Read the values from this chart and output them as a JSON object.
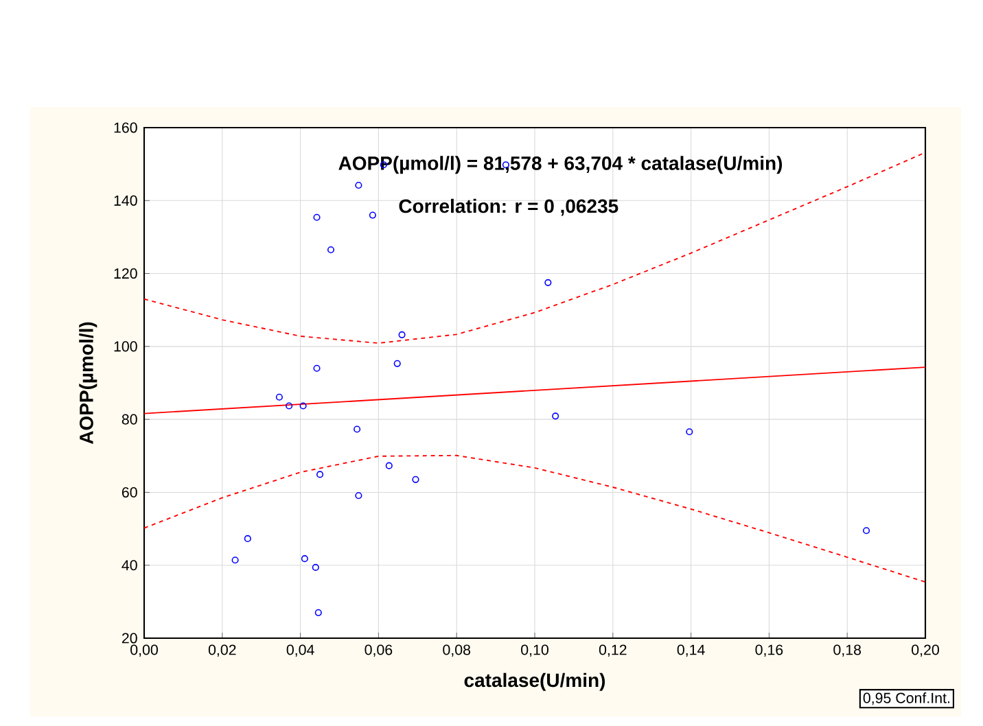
{
  "chart_data": {
    "type": "scatter",
    "xlabel": "catalase(U/min)",
    "ylabel": "AOPP(µmol/l)",
    "annotations": [
      "AOPP(µmol/l) = 81,578 + 63,704 * catalase(U/min)",
      "Correlation: r =  0 ,06235",
      "0,95 Conf.Int."
    ],
    "xlim": [
      0,
      0.2
    ],
    "xticks": [
      {
        "value": 0,
        "label": "0,00"
      },
      {
        "value": 0.02,
        "label": "0,02"
      },
      {
        "value": 0.04,
        "label": "0,04"
      },
      {
        "value": 0.06,
        "label": "0,06"
      },
      {
        "value": 0.08,
        "label": "0,08"
      },
      {
        "value": 0.1,
        "label": "0,10"
      },
      {
        "value": 0.12,
        "label": "0,12"
      },
      {
        "value": 0.14,
        "label": "0,14"
      },
      {
        "value": 0.16,
        "label": "0,16"
      },
      {
        "value": 0.18,
        "label": "0,18"
      },
      {
        "value": 0.2,
        "label": "0,20"
      }
    ],
    "ylim": [
      20,
      160
    ],
    "yticks": [
      20,
      40,
      60,
      80,
      100,
      120,
      140,
      160
    ],
    "grid": true,
    "series": [
      {
        "color": "#0000ff",
        "marker": "circle",
        "x": [
          0.0613,
          0.0549,
          0.0442,
          0.0585,
          0.0478,
          0.066,
          0.0648,
          0.0442,
          0.0346,
          0.0371,
          0.0407,
          0.0545,
          0.0627,
          0.0695,
          0.045,
          0.0549,
          0.0265,
          0.0233,
          0.0411,
          0.0439,
          0.0446,
          0.0926,
          0.1034,
          0.1053,
          0.1396,
          0.1849
        ],
        "values": [
          149.8,
          144.2,
          135.4,
          136.0,
          126.5,
          103.2,
          95.3,
          94.0,
          86.1,
          83.7,
          83.7,
          77.3,
          67.3,
          63.5,
          64.9,
          59.1,
          47.3,
          41.4,
          41.8,
          39.4,
          27.0,
          149.8,
          117.5,
          80.9,
          76.6,
          49.5
        ]
      },
      {
        "type": "line",
        "color": "#ff0000",
        "line_style": "solid",
        "x": [
          0,
          0.2
        ],
        "values": [
          81.6,
          94.3
        ]
      },
      {
        "type": "line",
        "color": "#ff0000",
        "line_style": "dashed",
        "x": [
          0,
          0.02,
          0.04,
          0.06,
          0.08,
          0.1,
          0.12,
          0.14,
          0.16,
          0.18,
          0.2
        ],
        "values": [
          113.0,
          107.3,
          102.8,
          100.9,
          103.3,
          109.3,
          117.0,
          125.6,
          134.7,
          143.8,
          153.2
        ]
      },
      {
        "type": "line",
        "color": "#ff0000",
        "line_style": "dashed",
        "x": [
          0,
          0.02,
          0.04,
          0.06,
          0.08,
          0.1,
          0.12,
          0.14,
          0.16,
          0.18,
          0.2
        ],
        "values": [
          50.2,
          58.5,
          65.5,
          69.9,
          70.1,
          66.7,
          61.4,
          55.4,
          48.9,
          42.2,
          35.4
        ]
      }
    ]
  }
}
